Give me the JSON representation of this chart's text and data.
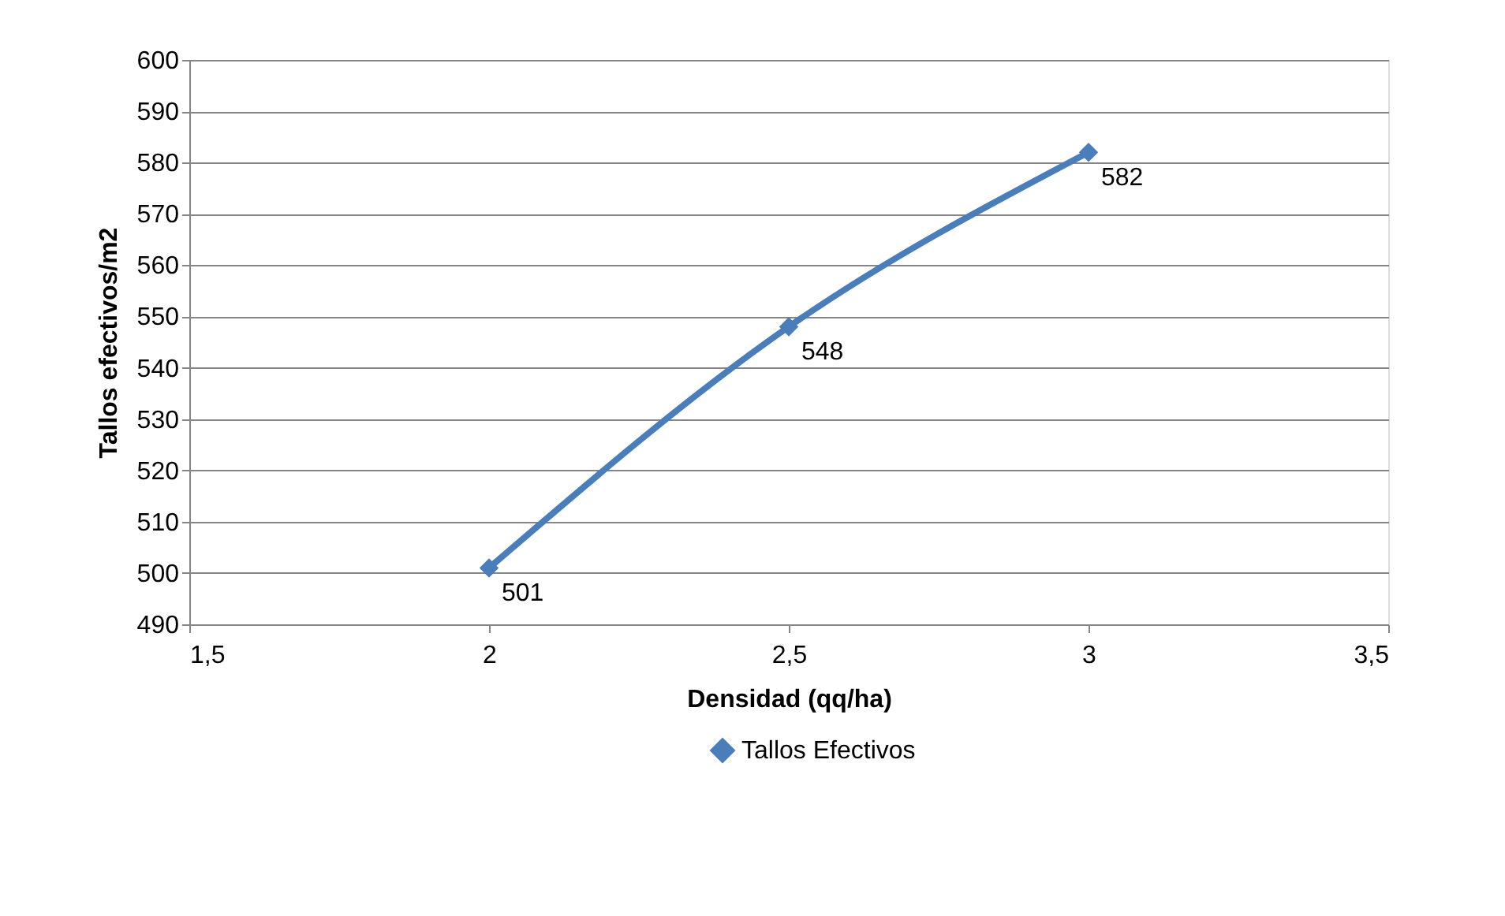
{
  "chart_data": {
    "type": "line",
    "xlabel": "Densidad (qq/ha)",
    "ylabel": "Tallos efectivos/m2",
    "x": [
      2,
      2.5,
      3
    ],
    "series": [
      {
        "name": "Tallos Efectivos",
        "color": "#4a7ebb",
        "values": [
          501,
          548,
          582
        ]
      }
    ],
    "xlim": [
      1.5,
      3.5
    ],
    "xticks": [
      {
        "value": 1.5,
        "label": "1,5"
      },
      2,
      {
        "value": 2.5,
        "label": "2,5"
      },
      3,
      {
        "value": 3.5,
        "label": "3,5"
      }
    ],
    "ylim": [
      490,
      600
    ],
    "yticks": [
      490,
      500,
      510,
      520,
      530,
      540,
      550,
      560,
      570,
      580,
      590,
      600
    ],
    "grid": "y",
    "legend": "bottom",
    "marker": "diamond",
    "line_style": "solid",
    "data_labels": true
  }
}
